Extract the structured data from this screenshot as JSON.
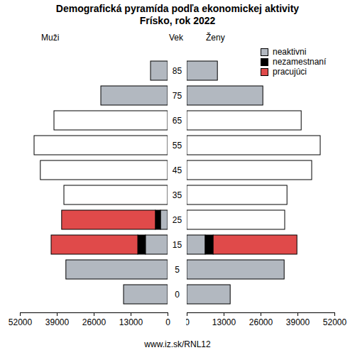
{
  "chart_data": {
    "type": "pyramid",
    "title": "Demografická pyramída podľa ekonomickej aktivity",
    "subtitle": "Frísko, rok 2022",
    "caption": "www.iz.sk/RNL12",
    "y_label": "Vek",
    "categories": [
      "0",
      "5",
      "15",
      "25",
      "35",
      "45",
      "55",
      "65",
      "75",
      "85"
    ],
    "stacked": true,
    "legend": "top-right",
    "panels": [
      {
        "name": "Muži",
        "xlim": [
          52000,
          0
        ],
        "xticks": [
          52000,
          39000,
          26000,
          13000,
          0
        ],
        "series": [
          {
            "name": "neaktivni",
            "color": "#b2b8c0",
            "values": [
              15500,
              35800,
              7800,
              2500,
              null,
              null,
              null,
              null,
              23500,
              6000
            ]
          },
          {
            "name": "nezamestnaní",
            "color": "#000000",
            "values": [
              null,
              null,
              2700,
              1800,
              null,
              null,
              null,
              null,
              null,
              null
            ]
          },
          {
            "name": "pracujúci",
            "color": "#e04a4a",
            "values": [
              null,
              null,
              30500,
              33000,
              null,
              null,
              null,
              null,
              null,
              null
            ]
          }
        ],
        "totals": {
          "color": "#ffffff",
          "values": [
            null,
            null,
            null,
            null,
            36500,
            44800,
            47000,
            40000,
            null,
            null
          ]
        }
      },
      {
        "name": "Ženy",
        "xlim": [
          0,
          52000
        ],
        "xticks": [
          0,
          13000,
          26000,
          39000,
          52000
        ],
        "series": [
          {
            "name": "neaktivni",
            "color": "#b2b8c0",
            "values": [
              15300,
              34300,
              6500,
              null,
              null,
              null,
              null,
              null,
              26800,
              10800
            ]
          },
          {
            "name": "nezamestnaní",
            "color": "#000000",
            "values": [
              null,
              null,
              2800,
              null,
              null,
              null,
              null,
              null,
              null,
              null
            ]
          },
          {
            "name": "pracujúci",
            "color": "#e04a4a",
            "values": [
              null,
              null,
              29500,
              null,
              null,
              null,
              null,
              null,
              null,
              null
            ]
          }
        ],
        "totals": {
          "color": "#ffffff",
          "values": [
            null,
            null,
            null,
            34500,
            35300,
            44000,
            47000,
            40300,
            null,
            null
          ]
        }
      }
    ]
  }
}
